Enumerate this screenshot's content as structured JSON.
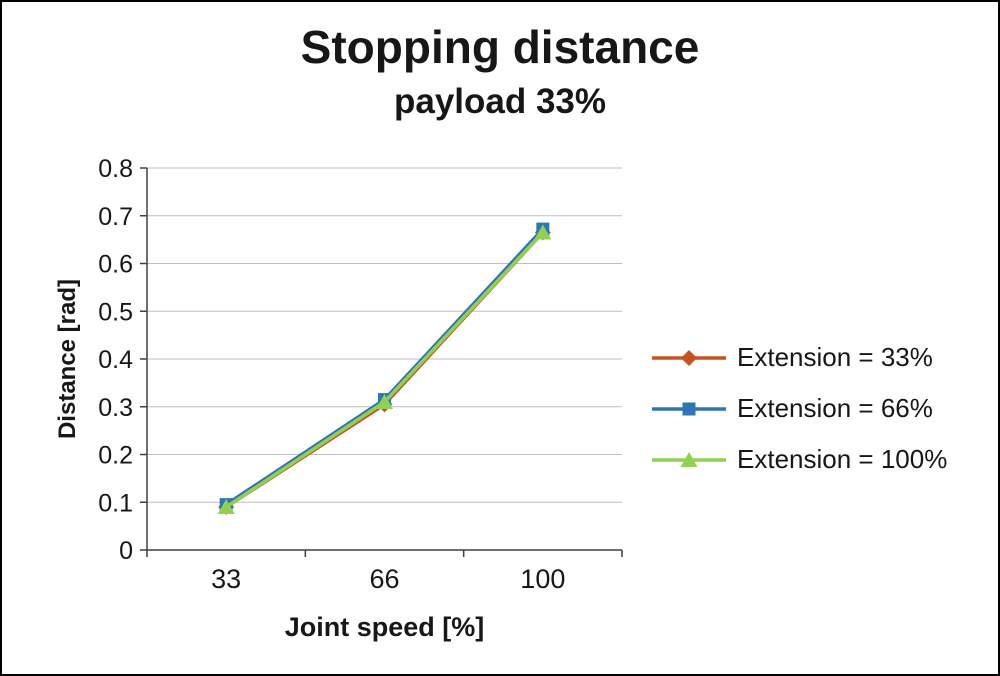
{
  "chart_data": {
    "type": "line",
    "title": "Stopping distance",
    "subtitle": "payload 33%",
    "xlabel": "Joint speed [%]",
    "ylabel": "Distance [rad]",
    "categories": [
      "33",
      "66",
      "100"
    ],
    "ylim": [
      0,
      0.8
    ],
    "ytick_step": 0.1,
    "grid": true,
    "legend_position": "right",
    "colors": {
      "gridline": "#bfbfbf",
      "axis": "#404040",
      "text": "#171717"
    },
    "series": [
      {
        "name": "Extension = 33%",
        "color": "#c9531f",
        "marker": "diamond",
        "values": [
          0.09,
          0.305,
          0.665
        ]
      },
      {
        "name": "Extension = 66%",
        "color": "#2e75b6",
        "marker": "square",
        "values": [
          0.095,
          0.315,
          0.672
        ]
      },
      {
        "name": "Extension = 100%",
        "color": "#92d050",
        "marker": "triangle",
        "values": [
          0.09,
          0.31,
          0.665
        ]
      }
    ]
  }
}
